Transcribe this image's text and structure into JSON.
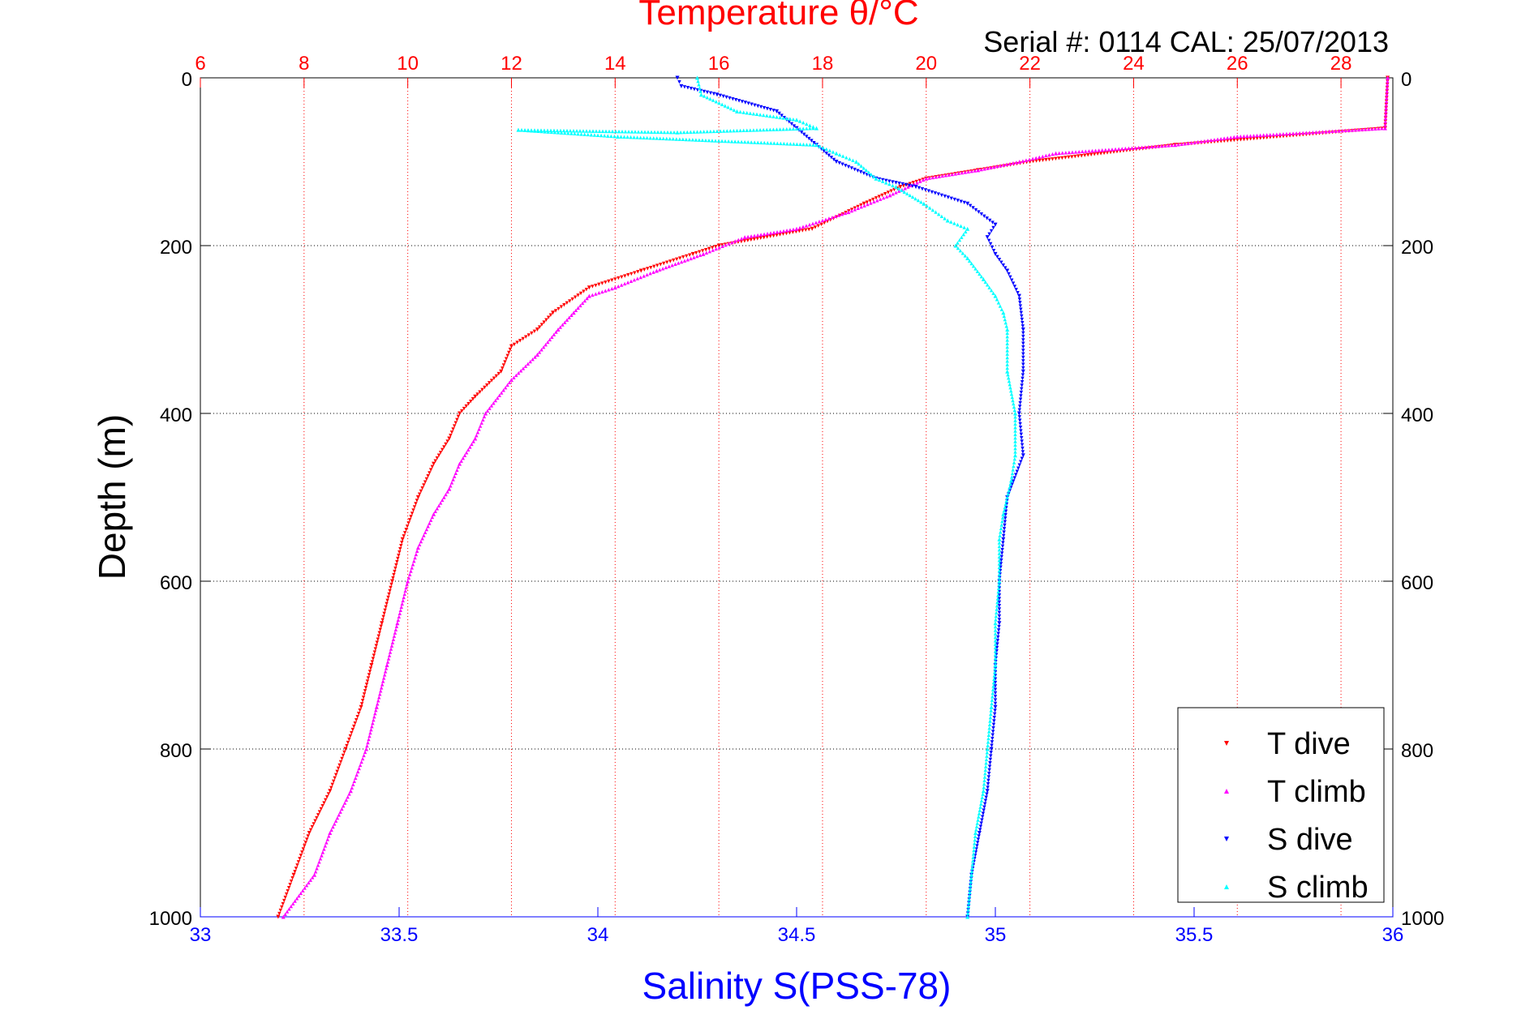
{
  "chart_data": {
    "type": "scatter",
    "title": "Temperature θ/°C",
    "subtitle": "Serial #: 0114  CAL: 25/07/2013",
    "ylabel": "Depth (m)",
    "xlabel_bottom": "Salinity S(PSS-78)",
    "ylim": [
      0,
      1000
    ],
    "y_reversed": true,
    "y_ticks": [
      "0",
      "200",
      "400",
      "600",
      "800",
      "1000"
    ],
    "y_tick_values": [
      0,
      200,
      400,
      600,
      800,
      1000
    ],
    "x_top": {
      "range": [
        6,
        29
      ],
      "ticks": [
        "6",
        "8",
        "10",
        "12",
        "14",
        "16",
        "18",
        "20",
        "22",
        "24",
        "26",
        "28"
      ],
      "tick_values": [
        6,
        8,
        10,
        12,
        14,
        16,
        18,
        20,
        22,
        24,
        26,
        28
      ]
    },
    "x_bottom": {
      "range": [
        33,
        36
      ],
      "ticks": [
        "33",
        "33.5",
        "34",
        "34.5",
        "35",
        "35.5",
        "36"
      ],
      "tick_values": [
        33,
        33.5,
        34,
        34.5,
        35,
        35.5,
        36
      ]
    },
    "grid": true,
    "legend_position": "bottom-right",
    "series": [
      {
        "name": "T dive",
        "axis": "top",
        "color": "#ff0000",
        "marker": "triangle-down",
        "points": [
          [
            28.9,
            0
          ],
          [
            28.85,
            60
          ],
          [
            24.8,
            80
          ],
          [
            22,
            100
          ],
          [
            21,
            110
          ],
          [
            20,
            120
          ],
          [
            19.5,
            130
          ],
          [
            18.8,
            150
          ],
          [
            17.8,
            180
          ],
          [
            16,
            200
          ],
          [
            15.5,
            210
          ],
          [
            14.5,
            230
          ],
          [
            13.5,
            250
          ],
          [
            12.8,
            280
          ],
          [
            12.5,
            300
          ],
          [
            12,
            320
          ],
          [
            11.8,
            350
          ],
          [
            11.3,
            380
          ],
          [
            11,
            400
          ],
          [
            10.8,
            430
          ],
          [
            10.5,
            460
          ],
          [
            10.2,
            500
          ],
          [
            9.9,
            550
          ],
          [
            9.7,
            600
          ],
          [
            9.5,
            650
          ],
          [
            9.3,
            700
          ],
          [
            9.1,
            750
          ],
          [
            8.8,
            800
          ],
          [
            8.5,
            850
          ],
          [
            8.1,
            900
          ],
          [
            7.8,
            950
          ],
          [
            7.5,
            1000
          ]
        ]
      },
      {
        "name": "T climb",
        "axis": "top",
        "color": "#ff00ff",
        "marker": "triangle-up",
        "points": [
          [
            28.9,
            0
          ],
          [
            28.85,
            60
          ],
          [
            26,
            70
          ],
          [
            24.8,
            80
          ],
          [
            22.5,
            90
          ],
          [
            21.8,
            100
          ],
          [
            21,
            110
          ],
          [
            20,
            120
          ],
          [
            19.3,
            140
          ],
          [
            18.5,
            160
          ],
          [
            17.5,
            180
          ],
          [
            16.5,
            190
          ],
          [
            15.7,
            210
          ],
          [
            14.8,
            230
          ],
          [
            14,
            250
          ],
          [
            13.5,
            260
          ],
          [
            13.2,
            280
          ],
          [
            12.9,
            300
          ],
          [
            12.5,
            330
          ],
          [
            12,
            360
          ],
          [
            11.5,
            400
          ],
          [
            11.3,
            430
          ],
          [
            11,
            460
          ],
          [
            10.8,
            490
          ],
          [
            10.5,
            520
          ],
          [
            10.2,
            560
          ],
          [
            10,
            600
          ],
          [
            9.8,
            650
          ],
          [
            9.6,
            700
          ],
          [
            9.4,
            750
          ],
          [
            9.2,
            800
          ],
          [
            8.9,
            850
          ],
          [
            8.5,
            900
          ],
          [
            8.2,
            950
          ],
          [
            7.6,
            1000
          ]
        ]
      },
      {
        "name": "S dive",
        "axis": "bottom",
        "color": "#0000ff",
        "marker": "triangle-down",
        "points": [
          [
            34.2,
            0
          ],
          [
            34.21,
            10
          ],
          [
            34.3,
            20
          ],
          [
            34.45,
            40
          ],
          [
            34.5,
            60
          ],
          [
            34.55,
            80
          ],
          [
            34.6,
            100
          ],
          [
            34.7,
            120
          ],
          [
            34.8,
            130
          ],
          [
            34.93,
            150
          ],
          [
            35.0,
            175
          ],
          [
            34.98,
            190
          ],
          [
            35.0,
            210
          ],
          [
            35.03,
            230
          ],
          [
            35.06,
            260
          ],
          [
            35.07,
            300
          ],
          [
            35.07,
            350
          ],
          [
            35.06,
            400
          ],
          [
            35.07,
            450
          ],
          [
            35.03,
            500
          ],
          [
            35.02,
            550
          ],
          [
            35.01,
            600
          ],
          [
            35.01,
            650
          ],
          [
            35.0,
            700
          ],
          [
            35.0,
            750
          ],
          [
            34.99,
            800
          ],
          [
            34.98,
            850
          ],
          [
            34.96,
            900
          ],
          [
            34.94,
            950
          ],
          [
            34.93,
            1000
          ]
        ]
      },
      {
        "name": "S climb",
        "axis": "bottom",
        "color": "#00ffff",
        "marker": "triangle-up",
        "points": [
          [
            34.25,
            0
          ],
          [
            34.26,
            20
          ],
          [
            34.35,
            40
          ],
          [
            34.5,
            50
          ],
          [
            34.55,
            60
          ],
          [
            34.2,
            65
          ],
          [
            33.8,
            62
          ],
          [
            34.05,
            70
          ],
          [
            34.55,
            80
          ],
          [
            34.6,
            90
          ],
          [
            34.65,
            100
          ],
          [
            34.7,
            120
          ],
          [
            34.75,
            130
          ],
          [
            34.82,
            150
          ],
          [
            34.88,
            170
          ],
          [
            34.93,
            180
          ],
          [
            34.9,
            200
          ],
          [
            34.93,
            215
          ],
          [
            34.97,
            240
          ],
          [
            35.0,
            260
          ],
          [
            35.02,
            280
          ],
          [
            35.03,
            300
          ],
          [
            35.03,
            350
          ],
          [
            35.05,
            400
          ],
          [
            35.05,
            450
          ],
          [
            35.04,
            480
          ],
          [
            35.02,
            520
          ],
          [
            35.01,
            550
          ],
          [
            35.01,
            600
          ],
          [
            35.0,
            650
          ],
          [
            35.0,
            700
          ],
          [
            34.99,
            750
          ],
          [
            34.98,
            800
          ],
          [
            34.97,
            850
          ],
          [
            34.95,
            900
          ],
          [
            34.94,
            950
          ],
          [
            34.93,
            1000
          ]
        ]
      }
    ]
  }
}
